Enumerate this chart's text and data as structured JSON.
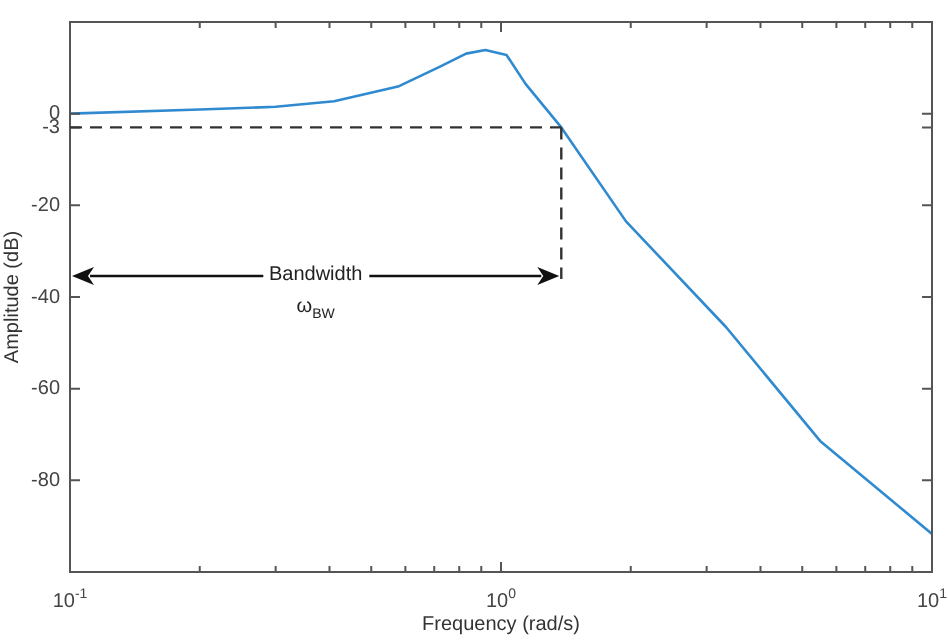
{
  "chart_data": {
    "type": "line",
    "xlabel": "Frequency (rad/s)",
    "ylabel": "Amplitude (dB)",
    "x": [
      0.1,
      0.2,
      0.3,
      0.41,
      0.58,
      0.72,
      0.83,
      0.92,
      1.03,
      1.14,
      1.38,
      1.95,
      3.33,
      5.5,
      10
    ],
    "series": [
      {
        "color": "#2f8ad0",
        "values": [
          0,
          0.9,
          1.5,
          2.7,
          6.0,
          10.2,
          13.1,
          13.9,
          12.8,
          6.5,
          -3,
          -23.5,
          -46.6,
          -71.4,
          -91.7
        ]
      }
    ],
    "log": "x",
    "xlim": [
      0.1,
      10
    ],
    "ylim": [
      -100,
      20
    ],
    "xticks": [
      {
        "value": 0.1,
        "label": "10$^{-1}$"
      },
      {
        "value": 0.2,
        "label": null
      },
      {
        "value": 0.3,
        "label": null
      },
      {
        "value": 0.4,
        "label": null
      },
      {
        "value": 0.5,
        "label": null
      },
      {
        "value": 0.6,
        "label": null
      },
      {
        "value": 0.7,
        "label": null
      },
      {
        "value": 0.8,
        "label": null
      },
      {
        "value": 0.9,
        "label": null
      },
      {
        "value": 1,
        "label": "10$^{0}$"
      },
      {
        "value": 2,
        "label": null
      },
      {
        "value": 3,
        "label": null
      },
      {
        "value": 4,
        "label": null
      },
      {
        "value": 5,
        "label": null
      },
      {
        "value": 6,
        "label": null
      },
      {
        "value": 7,
        "label": null
      },
      {
        "value": 8,
        "label": null
      },
      {
        "value": 9,
        "label": null
      },
      {
        "value": 10,
        "label": "10$^{1}$"
      }
    ],
    "yticks": [
      -80,
      -60,
      -40,
      -20,
      -3,
      0
    ],
    "ref_lines": [
      {
        "axis": "y",
        "value": -3,
        "color": "#333333",
        "line_style": "dashed"
      },
      {
        "axis": "x",
        "value": 1.38,
        "color": "#333333",
        "line_style": "dashed"
      }
    ],
    "annotations": [
      "Bandwidth",
      "ω$_{BW}$"
    ],
    "marker": "none",
    "line_style": "solid"
  }
}
